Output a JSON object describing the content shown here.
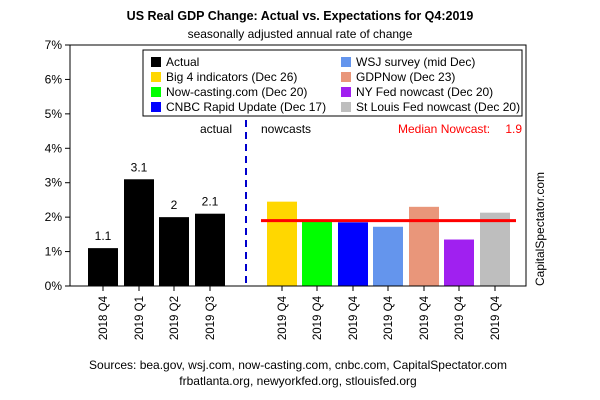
{
  "chart_data": {
    "type": "bar",
    "title": "US Real GDP Change: Actual vs. Expectations for Q4:2019",
    "subtitle": "seasonally adjusted annual rate of change",
    "y_ticks": [
      "0%",
      "1%",
      "2%",
      "3%",
      "4%",
      "5%",
      "6%",
      "7%"
    ],
    "ylim": [
      0,
      7
    ],
    "grid": false,
    "legend_position": "top",
    "series": [
      {
        "name": "Actual",
        "label": "2018 Q4",
        "value": 1.1,
        "value_label": "1.1",
        "color": "#000000",
        "group": "actual"
      },
      {
        "name": "Actual",
        "label": "2019 Q1",
        "value": 3.1,
        "value_label": "3.1",
        "color": "#000000",
        "group": "actual"
      },
      {
        "name": "Actual",
        "label": "2019 Q2",
        "value": 2.0,
        "value_label": "2",
        "color": "#000000",
        "group": "actual"
      },
      {
        "name": "Actual",
        "label": "2019 Q3",
        "value": 2.1,
        "value_label": "2.1",
        "color": "#000000",
        "group": "actual"
      },
      {
        "name": "Big 4 indicators (Dec 26)",
        "label": "2019 Q4",
        "value": 2.45,
        "color": "#FFD700",
        "group": "nowcast"
      },
      {
        "name": "Now-casting.com (Dec 20)",
        "label": "2019 Q4",
        "value": 1.9,
        "color": "#00FF00",
        "group": "nowcast"
      },
      {
        "name": "CNBC Rapid Update (Dec 17)",
        "label": "2019 Q4",
        "value": 1.85,
        "color": "#0000FF",
        "group": "nowcast"
      },
      {
        "name": "WSJ survey (mid Dec)",
        "label": "2019 Q4",
        "value": 1.72,
        "color": "#6495ED",
        "group": "nowcast"
      },
      {
        "name": "GDPNow (Dec 23)",
        "label": "2019 Q4",
        "value": 2.3,
        "color": "#E9967A",
        "group": "nowcast"
      },
      {
        "name": "NY Fed nowcast (Dec 20)",
        "label": "2019 Q4",
        "value": 1.35,
        "color": "#A020F0",
        "group": "nowcast"
      },
      {
        "name": "St Louis Fed nowcast (Dec 20)",
        "label": "2019 Q4",
        "value": 2.13,
        "color": "#BEBEBE",
        "group": "nowcast"
      }
    ],
    "legend": [
      {
        "name": "Actual",
        "color": "#000000"
      },
      {
        "name": "WSJ survey (mid Dec)",
        "color": "#6495ED"
      },
      {
        "name": "Big 4 indicators (Dec 26)",
        "color": "#FFD700"
      },
      {
        "name": "GDPNow (Dec 23)",
        "color": "#E9967A"
      },
      {
        "name": "Now-casting.com (Dec 20)",
        "color": "#00FF00"
      },
      {
        "name": "NY Fed nowcast (Dec 20)",
        "color": "#A020F0"
      },
      {
        "name": "CNBC Rapid Update (Dec 17)",
        "color": "#0000FF"
      },
      {
        "name": "St Louis Fed nowcast (Dec 20)",
        "color": "#BEBEBE"
      }
    ],
    "median_nowcast": {
      "label": "Median Nowcast:",
      "value": 1.9,
      "value_label": "1.9",
      "color": "#FF0000"
    },
    "section_labels": {
      "actual": "actual",
      "nowcasts": "nowcasts"
    },
    "side_label": "CapitalSpectator.com",
    "sources": [
      "Sources: bea.gov, wsj.com, now-casting.com, cnbc.com, CapitalSpectator.com",
      "frbatlanta.org, newyorkfed.org, stlouisfed.org"
    ]
  }
}
